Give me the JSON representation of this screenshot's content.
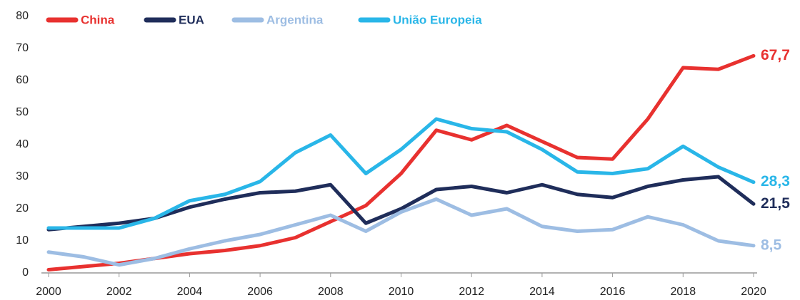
{
  "chart_data": {
    "type": "line",
    "x": [
      2000,
      2001,
      2002,
      2003,
      2004,
      2005,
      2006,
      2007,
      2008,
      2009,
      2010,
      2011,
      2012,
      2013,
      2014,
      2015,
      2016,
      2017,
      2018,
      2019,
      2020
    ],
    "xlim": [
      2000,
      2020
    ],
    "xticks": [
      2000,
      2002,
      2004,
      2006,
      2008,
      2010,
      2012,
      2014,
      2016,
      2018,
      2020
    ],
    "ylim": [
      0,
      80
    ],
    "yticks": [
      0,
      10,
      20,
      30,
      40,
      50,
      60,
      70,
      80
    ],
    "grid": false,
    "legend": "top-left",
    "series": [
      {
        "name": "China",
        "color": "#e8312f",
        "values": [
          1,
          2,
          3,
          4.5,
          6,
          7,
          8.5,
          11,
          16,
          21,
          31,
          44.5,
          41.5,
          46,
          41,
          36,
          35.5,
          48,
          64,
          63.5,
          67.7
        ],
        "value_labels": [
          null,
          null,
          null,
          null,
          null,
          null,
          null,
          null,
          null,
          null,
          null,
          null,
          null,
          null,
          null,
          null,
          null,
          null,
          null,
          null,
          "67,7"
        ]
      },
      {
        "name": "EUA",
        "color": "#1f2d5a",
        "values": [
          13.5,
          14.5,
          15.5,
          17,
          20.5,
          23,
          25,
          25.5,
          27.5,
          15.5,
          20,
          26,
          27,
          25,
          27.5,
          24.5,
          23.5,
          27,
          29,
          30,
          21.5
        ],
        "value_labels": [
          null,
          null,
          null,
          null,
          null,
          null,
          null,
          null,
          null,
          null,
          null,
          null,
          null,
          null,
          null,
          null,
          null,
          null,
          null,
          null,
          "21,5"
        ]
      },
      {
        "name": "Argentina",
        "color": "#9dbde3",
        "values": [
          6.5,
          5,
          2.5,
          4.5,
          7.5,
          10,
          12,
          15,
          18,
          13,
          19,
          23,
          18,
          20,
          14.5,
          13,
          13.5,
          17.5,
          15,
          10,
          8.5
        ],
        "value_labels": [
          null,
          null,
          null,
          null,
          null,
          null,
          null,
          null,
          null,
          null,
          null,
          null,
          null,
          null,
          null,
          null,
          null,
          null,
          null,
          null,
          "8,5"
        ]
      },
      {
        "name": "União Europeia",
        "color": "#29b6e8",
        "values": [
          14,
          14,
          14,
          17,
          22.5,
          24.5,
          28.5,
          37.5,
          43,
          31,
          38.5,
          48,
          45,
          44,
          38.5,
          31.5,
          31,
          32.5,
          39.5,
          33,
          28.3
        ],
        "value_labels": [
          null,
          null,
          null,
          null,
          null,
          null,
          null,
          null,
          null,
          null,
          null,
          null,
          null,
          null,
          null,
          null,
          null,
          null,
          null,
          null,
          "28,3"
        ]
      }
    ]
  }
}
